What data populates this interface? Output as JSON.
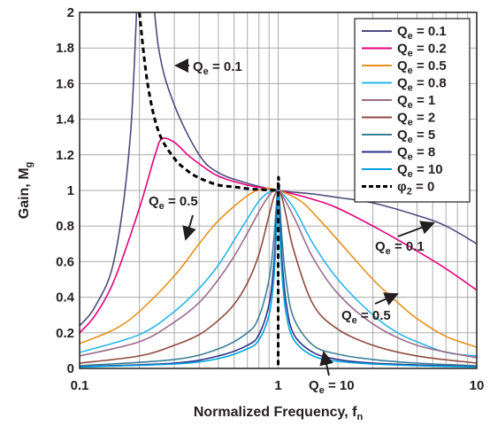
{
  "chart_data": {
    "type": "line",
    "xscale": "log",
    "xlim": [
      0.1,
      10
    ],
    "ylim": [
      0,
      2
    ],
    "grid": true,
    "legend_position": "top-right",
    "xlabel": {
      "main": "Normalized Frequency, f",
      "sub": "n"
    },
    "ylabel": {
      "main": "Gain, M",
      "sub": "g"
    },
    "xticks": [
      "0.1",
      "1",
      "10"
    ],
    "yticks": [
      "0",
      "0.2",
      "0.4",
      "0.6",
      "0.8",
      "1",
      "1.2",
      "1.4",
      "1.6",
      "1.8",
      "2"
    ],
    "series": [
      {
        "name": "Qe = 0.1",
        "label_main": "Q",
        "label_sub": "e",
        "label_value": " = 0.1",
        "color": "#4d4a7e",
        "dash": false,
        "x": [
          0.1,
          0.12,
          0.15,
          0.18,
          0.2,
          0.22,
          0.25,
          0.3,
          0.4,
          0.5,
          0.7,
          1,
          1.5,
          2,
          3,
          5,
          7,
          10
        ],
        "y": [
          0.24,
          0.35,
          0.62,
          1.3,
          2.3,
          2.4,
          1.8,
          1.48,
          1.2,
          1.1,
          1.04,
          1.0,
          0.98,
          0.96,
          0.93,
          0.86,
          0.8,
          0.7
        ]
      },
      {
        "name": "Qe = 0.2",
        "label_main": "Q",
        "label_sub": "e",
        "label_value": " = 0.2",
        "color": "#e5007e",
        "dash": false,
        "x": [
          0.1,
          0.12,
          0.15,
          0.2,
          0.24,
          0.26,
          0.3,
          0.35,
          0.4,
          0.5,
          0.7,
          1,
          1.5,
          2,
          3,
          5,
          7,
          10
        ],
        "y": [
          0.2,
          0.3,
          0.5,
          0.9,
          1.2,
          1.29,
          1.27,
          1.2,
          1.15,
          1.08,
          1.03,
          1.0,
          0.95,
          0.9,
          0.8,
          0.66,
          0.56,
          0.44
        ]
      },
      {
        "name": "Qe = 0.5",
        "label_main": "Q",
        "label_sub": "e",
        "label_value": " = 0.5",
        "color": "#e8901d",
        "dash": false,
        "x": [
          0.1,
          0.15,
          0.2,
          0.3,
          0.4,
          0.5,
          0.7,
          0.85,
          1,
          1.3,
          1.6,
          2,
          3,
          4,
          5,
          7,
          10
        ],
        "y": [
          0.14,
          0.22,
          0.32,
          0.52,
          0.7,
          0.83,
          0.97,
          1.01,
          1.0,
          0.94,
          0.84,
          0.72,
          0.5,
          0.37,
          0.28,
          0.18,
          0.12
        ]
      },
      {
        "name": "Qe = 0.8",
        "label_main": "Q",
        "label_sub": "e",
        "label_value": " = 0.8",
        "color": "#29b6e9",
        "dash": false,
        "x": [
          0.1,
          0.2,
          0.3,
          0.4,
          0.5,
          0.6,
          0.7,
          0.8,
          0.9,
          1,
          1.2,
          1.5,
          2,
          3,
          4,
          5,
          7,
          10
        ],
        "y": [
          0.09,
          0.19,
          0.32,
          0.45,
          0.58,
          0.72,
          0.84,
          0.94,
          0.99,
          1.0,
          0.9,
          0.7,
          0.5,
          0.3,
          0.2,
          0.15,
          0.09,
          0.07
        ]
      },
      {
        "name": "Qe = 1",
        "label_main": "Q",
        "label_sub": "e",
        "label_value": " = 1",
        "color": "#9b6b8d",
        "dash": false,
        "x": [
          0.1,
          0.2,
          0.3,
          0.4,
          0.5,
          0.6,
          0.7,
          0.8,
          0.9,
          1,
          1.2,
          1.5,
          2,
          3,
          5,
          10
        ],
        "y": [
          0.07,
          0.15,
          0.26,
          0.37,
          0.5,
          0.63,
          0.76,
          0.88,
          0.97,
          1.0,
          0.85,
          0.62,
          0.42,
          0.25,
          0.13,
          0.06
        ]
      },
      {
        "name": "Qe = 2",
        "label_main": "Q",
        "label_sub": "e",
        "label_value": " = 2",
        "color": "#8e4a3c",
        "dash": false,
        "x": [
          0.1,
          0.2,
          0.3,
          0.4,
          0.5,
          0.6,
          0.7,
          0.8,
          0.9,
          0.95,
          1,
          1.05,
          1.1,
          1.2,
          1.5,
          2,
          3,
          5,
          10
        ],
        "y": [
          0.03,
          0.07,
          0.13,
          0.19,
          0.27,
          0.36,
          0.48,
          0.64,
          0.86,
          0.96,
          1.0,
          0.95,
          0.85,
          0.66,
          0.36,
          0.22,
          0.13,
          0.07,
          0.03
        ]
      },
      {
        "name": "Qe = 5",
        "label_main": "Q",
        "label_sub": "e",
        "label_value": " = 5",
        "color": "#3b7f97",
        "dash": false,
        "x": [
          0.1,
          0.3,
          0.5,
          0.7,
          0.8,
          0.9,
          0.95,
          1,
          1.05,
          1.1,
          1.2,
          1.5,
          2,
          3,
          5,
          10
        ],
        "y": [
          0.015,
          0.05,
          0.11,
          0.2,
          0.29,
          0.5,
          0.72,
          1.0,
          0.7,
          0.48,
          0.28,
          0.13,
          0.08,
          0.05,
          0.03,
          0.015
        ]
      },
      {
        "name": "Qe = 8",
        "label_main": "Q",
        "label_sub": "e",
        "label_value": " = 8",
        "color": "#2f3189",
        "dash": false,
        "x": [
          0.1,
          0.3,
          0.5,
          0.7,
          0.8,
          0.9,
          0.95,
          0.98,
          1,
          1.02,
          1.05,
          1.1,
          1.2,
          1.5,
          2,
          3,
          5,
          10
        ],
        "y": [
          0.01,
          0.03,
          0.07,
          0.13,
          0.19,
          0.36,
          0.58,
          0.82,
          1.0,
          0.82,
          0.58,
          0.36,
          0.19,
          0.09,
          0.05,
          0.03,
          0.02,
          0.01
        ]
      },
      {
        "name": "Qe = 10",
        "label_main": "Q",
        "label_sub": "e",
        "label_value": " = 10",
        "color": "#00a3e0",
        "dash": false,
        "x": [
          0.1,
          0.3,
          0.5,
          0.7,
          0.8,
          0.9,
          0.95,
          0.98,
          1,
          1.02,
          1.05,
          1.1,
          1.2,
          1.5,
          2,
          3,
          5,
          10
        ],
        "y": [
          0.008,
          0.025,
          0.055,
          0.11,
          0.16,
          0.3,
          0.5,
          0.76,
          1.0,
          0.76,
          0.5,
          0.3,
          0.16,
          0.07,
          0.04,
          0.025,
          0.015,
          0.008
        ]
      },
      {
        "name": "φ2 = 0",
        "label_main": "φ",
        "label_sub": "2",
        "label_value": " = 0",
        "color": "#000000",
        "dash": true,
        "x": [
          0.2,
          0.22,
          0.25,
          0.3,
          0.35,
          0.4,
          0.5,
          0.6,
          0.7,
          0.8,
          0.9,
          0.999,
          1.0,
          1.0
        ],
        "y": [
          2.0,
          1.6,
          1.33,
          1.18,
          1.11,
          1.07,
          1.03,
          1.02,
          1.01,
          1.005,
          1.002,
          1.0,
          1.0,
          0.0
        ]
      }
    ],
    "annotations": [
      {
        "main": "Q",
        "sub": "e",
        "value": " = 0.1",
        "near": "upper-left peak"
      },
      {
        "main": "Q",
        "sub": "e",
        "value": " = 0.5",
        "near": "left slope"
      },
      {
        "main": "Q",
        "sub": "e",
        "value": " = 0.1",
        "near": "right descending"
      },
      {
        "main": "Q",
        "sub": "e",
        "value": " = 0.5",
        "near": "right middle"
      },
      {
        "main": "Q",
        "sub": "e",
        "value": " = 10",
        "near": "bottom right of center"
      }
    ]
  }
}
